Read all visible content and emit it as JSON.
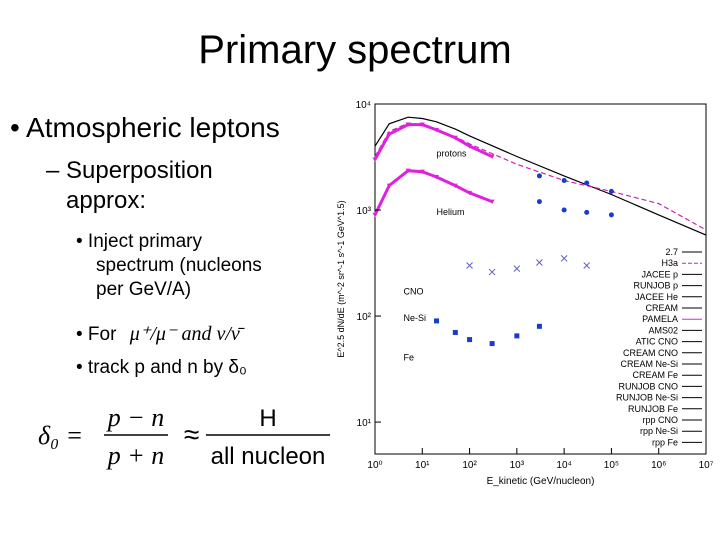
{
  "slide": {
    "title": "Primary spectrum",
    "bullet1": "• Atmospheric leptons",
    "bullet2_line1": "– Superposition",
    "bullet2_line2": "approx:",
    "sub1_line1": "• Inject primary",
    "sub1_line2": "spectrum (nucleons",
    "sub1_line3": "per GeV/A)",
    "sub2_prefix": "• For",
    "sub2_math": "μ⁺/μ⁻  and  ν/ν̄",
    "sub3": "•  track p and n by δ₀",
    "eq_lhs": "δ₀ =",
    "eq_num": "p − n",
    "eq_den": "p + n",
    "eq_approx": "≈",
    "eq_rnum": "H",
    "eq_rden": "all nucleon"
  },
  "chart_data": {
    "type": "line",
    "xlabel": "E_kinetic (GeV/nucleon)",
    "ylabel": "E^2.5 dN/dE (m^-2 sr^-1 s^-1 GeV^1.5)",
    "xscale": "log",
    "yscale": "log",
    "xlim": [
      1,
      10000000
    ],
    "ylim": [
      5,
      10000
    ],
    "xticks": [
      "10⁰",
      "10¹",
      "10²",
      "10³",
      "10⁴",
      "10⁵",
      "10⁶",
      "10⁷"
    ],
    "yticks": [
      "10¹",
      "10²",
      "10³",
      "10⁴"
    ],
    "curve_labels": [
      "protons",
      "Helium",
      "CNO",
      "Ne-Si",
      "Fe"
    ],
    "legend": [
      "2.7",
      "H3a",
      "JACEE p",
      "RUNJOB p",
      "JACEE He",
      "CREAM",
      "PAMELA",
      "AMS02",
      "ATIC CNO",
      "CREAM CNO",
      "CREAM Ne-Si",
      "CREAM Fe",
      "RUNJOB CNO",
      "RUNJOB Ne-Si",
      "RUNJOB Fe",
      "rpp CNO",
      "rpp Ne-Si",
      "rpp Fe"
    ],
    "legend_position": "lower-right",
    "colors": {
      "pamela": "#e020e0",
      "cream": "#1a3ccc",
      "h3a": "#cc22aa"
    },
    "series": [
      {
        "name": "2.7",
        "x": [
          1,
          2,
          5,
          10,
          20,
          50,
          100,
          1000,
          10000,
          100000,
          1000000,
          10000000
        ],
        "y": [
          4000,
          6500,
          7500,
          7300,
          6800,
          5800,
          5000,
          3200,
          2100,
          1400,
          900,
          580
        ]
      },
      {
        "name": "H3a",
        "x": [
          1,
          2,
          5,
          10,
          20,
          50,
          100,
          1000,
          10000,
          100000,
          1000000,
          10000000
        ],
        "y": [
          3200,
          5500,
          6600,
          6400,
          5800,
          4900,
          4200,
          2700,
          1900,
          1500,
          1150,
          650
        ]
      },
      {
        "name": "PAMELA",
        "x": [
          1,
          2,
          5,
          10,
          20,
          50,
          100,
          300
        ],
        "y": [
          3000,
          5200,
          6400,
          6400,
          5700,
          4800,
          4000,
          3200
        ]
      },
      {
        "name": "PAMELA",
        "x": [
          1,
          2,
          5,
          10,
          20,
          50,
          100,
          300
        ],
        "y": [
          900,
          1700,
          2350,
          2300,
          2050,
          1700,
          1450,
          1200
        ]
      },
      {
        "name": "CREAM",
        "x": [
          3000,
          10000,
          30000,
          100000
        ],
        "y": [
          2100,
          1900,
          1800,
          1500
        ]
      },
      {
        "name": "CREAM",
        "x": [
          3000,
          10000,
          30000,
          100000
        ],
        "y": [
          1200,
          1000,
          950,
          900
        ]
      },
      {
        "name": "CREAM CNO",
        "x": [
          100,
          300,
          1000,
          3000,
          10000,
          30000
        ],
        "y": [
          300,
          260,
          280,
          320,
          350,
          300
        ]
      },
      {
        "name": "CREAM Fe",
        "x": [
          20,
          50,
          100,
          300,
          1000,
          3000
        ],
        "y": [
          90,
          70,
          60,
          55,
          65,
          80
        ]
      }
    ]
  }
}
